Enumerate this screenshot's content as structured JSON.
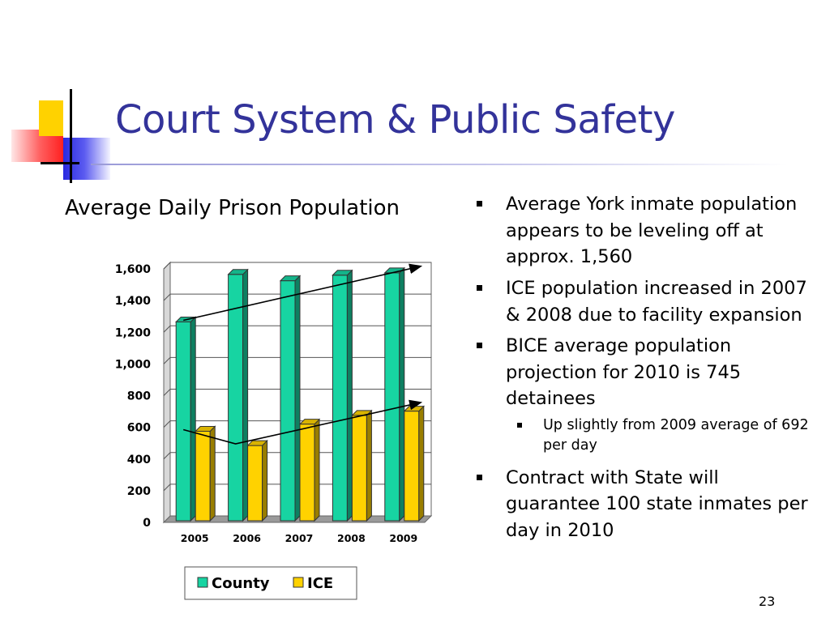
{
  "slide": {
    "title": "Court System & Public Safety",
    "page_number": "23"
  },
  "bullets": [
    {
      "text": "Average York inmate population appears to be leveling off at approx. 1,560",
      "level": 1
    },
    {
      "text": "ICE population increased in 2007 & 2008 due to facility expansion",
      "level": 1
    },
    {
      "text": "BICE average population projection for 2010 is 745 detainees",
      "level": 1
    },
    {
      "text": "Up slightly from 2009 average of 692 per day",
      "level": 2
    },
    {
      "text": "Contract with State will guarantee 100 state inmates per day in 2010",
      "level": 1
    }
  ],
  "chart_data": {
    "type": "bar",
    "title": "Average Daily Prison Population",
    "categories": [
      "2005",
      "2006",
      "2007",
      "2008",
      "2009"
    ],
    "series": [
      {
        "name": "County",
        "values": [
          1255,
          1555,
          1515,
          1550,
          1565
        ],
        "color": "#17d4a2"
      },
      {
        "name": "ICE",
        "values": [
          565,
          475,
          610,
          665,
          692
        ],
        "color": "#ffd200"
      }
    ],
    "ylim": [
      0,
      1600
    ],
    "yticks": [
      0,
      200,
      400,
      600,
      800,
      1000,
      1200,
      1400,
      1600
    ],
    "ytick_labels": [
      "0",
      "200",
      "400",
      "600",
      "800",
      "1,000",
      "1,200",
      "1,400",
      "1,600"
    ],
    "grid": true,
    "legend": "bottom",
    "trend_arrows": [
      {
        "series": "County",
        "points": [
          [
            "2005",
            1255
          ],
          [
            "2009",
            1595
          ]
        ]
      },
      {
        "series": "ICE",
        "points": [
          [
            "2005",
            565
          ],
          [
            "2006",
            475
          ],
          [
            "2009",
            735
          ]
        ]
      }
    ]
  }
}
